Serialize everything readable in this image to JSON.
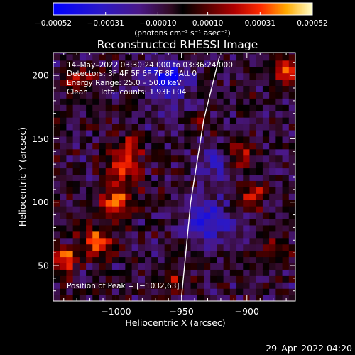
{
  "chart_data": {
    "type": "heatmap",
    "title": "Reconstructed RHESSI Image",
    "xlabel": "Heliocentric X (arcsec)",
    "ylabel": "Heliocentric Y (arcsec)",
    "xlim": [
      -1048,
      -863
    ],
    "ylim": [
      22,
      218
    ],
    "x_ticks": [
      -1000,
      -950,
      -900
    ],
    "x_tick_labels": [
      "−1000",
      "−950",
      "−900"
    ],
    "y_ticks": [
      50,
      100,
      150,
      200
    ],
    "y_tick_labels": [
      "50",
      "100",
      "150",
      "200"
    ],
    "colorbar": {
      "units": "(photons cm⁻² s⁻¹ asec⁻²)",
      "range": [
        -0.00052,
        0.00052
      ],
      "ticks": [
        -0.00052,
        -0.00031,
        -0.0001,
        0.0001,
        0.00031,
        0.00052
      ],
      "tick_labels": [
        "−0.00052",
        "−0.00031",
        "−0.00010",
        "0.00010",
        "0.00031",
        "0.00052"
      ]
    },
    "annotations": [
      "14–May–2022 03:30:24.000 to 03:36:24.000",
      "Detectors: 3F 4F 5F 6F 7F 8F, Att 0",
      "Energy Range: 25.0 – 50.0 keV",
      "Clean     Total counts: 1.93E+04"
    ],
    "peak_label": "Position of Peak = [−1032,63]",
    "limb_curve": [
      [
        -950,
        25
      ],
      [
        -943,
        100
      ],
      [
        -933,
        165
      ],
      [
        -921,
        215
      ]
    ],
    "hot_regions": [
      {
        "x": -1040,
        "y": 55,
        "sigma": 7,
        "strength": 0.9
      },
      {
        "x": -1015,
        "y": 70,
        "sigma": 9,
        "strength": 0.8
      },
      {
        "x": -1000,
        "y": 100,
        "sigma": 8,
        "strength": 0.85
      },
      {
        "x": -995,
        "y": 125,
        "sigma": 9,
        "strength": 0.8
      },
      {
        "x": -990,
        "y": 145,
        "sigma": 7,
        "strength": 0.6
      },
      {
        "x": -1030,
        "y": 195,
        "sigma": 8,
        "strength": 0.6
      },
      {
        "x": -905,
        "y": 140,
        "sigma": 7,
        "strength": 0.6
      },
      {
        "x": -895,
        "y": 105,
        "sigma": 7,
        "strength": 0.7
      },
      {
        "x": -870,
        "y": 205,
        "sigma": 7,
        "strength": 0.8
      },
      {
        "x": -880,
        "y": 60,
        "sigma": 7,
        "strength": 0.5
      },
      {
        "x": -935,
        "y": 165,
        "sigma": 5,
        "strength": 0.45
      },
      {
        "x": -955,
        "y": 35,
        "sigma": 6,
        "strength": 0.5
      }
    ],
    "cold_regions": [
      {
        "x": -960,
        "y": 195,
        "sigma": 12,
        "strength": 0.8
      },
      {
        "x": -930,
        "y": 85,
        "sigma": 12,
        "strength": 0.7
      },
      {
        "x": -925,
        "y": 130,
        "sigma": 8,
        "strength": 0.5
      }
    ]
  },
  "footer": {
    "timestamp": "29–Apr–2022 04:20"
  }
}
